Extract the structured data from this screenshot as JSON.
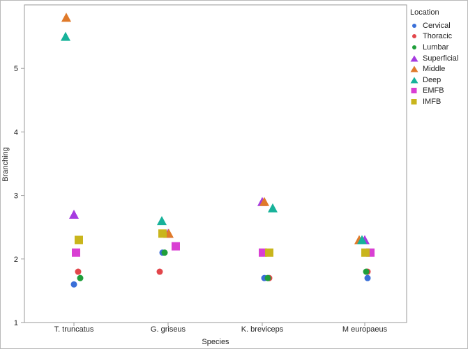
{
  "chart_data": {
    "type": "scatter",
    "title": "",
    "xlabel": "Species",
    "ylabel": "Branching",
    "categories": [
      "T. truncatus",
      "G. griseus",
      "K. breviceps",
      "M europaeus"
    ],
    "ylim": [
      1,
      6
    ],
    "yticks": [
      "1",
      "2",
      "3",
      "4",
      "5"
    ],
    "grid": false,
    "legend_position": "right",
    "legend_title": "Location",
    "series": [
      {
        "name": "Cervical",
        "marker": "circle",
        "color": "#3a6fd8",
        "values": [
          1.6,
          2.1,
          1.7,
          1.7
        ]
      },
      {
        "name": "Thoracic",
        "marker": "circle",
        "color": "#e2464b",
        "values": [
          1.8,
          1.8,
          1.7,
          1.8
        ]
      },
      {
        "name": "Lumbar",
        "marker": "circle",
        "color": "#1f9e3a",
        "values": [
          1.7,
          2.1,
          1.7,
          1.8
        ]
      },
      {
        "name": "Superficial",
        "marker": "triangle",
        "color": "#a63be0",
        "values": [
          2.7,
          2.4,
          2.9,
          2.3
        ]
      },
      {
        "name": "Middle",
        "marker": "triangle",
        "color": "#e07a2a",
        "values": [
          5.8,
          2.4,
          2.9,
          2.3
        ]
      },
      {
        "name": "Deep",
        "marker": "triangle",
        "color": "#17b29a",
        "values": [
          5.5,
          2.6,
          2.8,
          2.3
        ]
      },
      {
        "name": "EMFB",
        "marker": "square",
        "color": "#d93fd3",
        "values": [
          2.1,
          2.2,
          2.1,
          2.1
        ]
      },
      {
        "name": "IMFB",
        "marker": "square",
        "color": "#c9b51c",
        "values": [
          2.3,
          2.4,
          2.1,
          2.1
        ]
      }
    ]
  }
}
